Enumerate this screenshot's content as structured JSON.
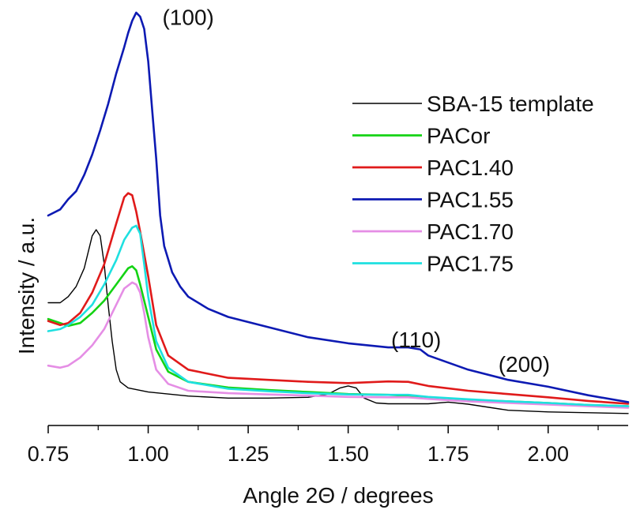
{
  "chart_data": {
    "type": "line",
    "title": "",
    "xlabel": "Angle 2Θ / degrees",
    "ylabel": "Intensity / a.u.",
    "xlim": [
      0.75,
      2.2
    ],
    "ylim": [
      0,
      100
    ],
    "x_ticks": [
      {
        "value": 0.75,
        "label": "0.75"
      },
      {
        "value": 1.0,
        "label": "1.00"
      },
      {
        "value": 1.25,
        "label": "1.25"
      },
      {
        "value": 1.5,
        "label": "1.50"
      },
      {
        "value": 1.75,
        "label": "1.75"
      },
      {
        "value": 2.0,
        "label": "2.00"
      }
    ],
    "y_ticks_shown": false,
    "grid": false,
    "legend_position": "top-right",
    "annotations": [
      {
        "text": "(100)",
        "x": 1.1,
        "y": 97
      },
      {
        "text": "(110)",
        "x": 1.67,
        "y": 17.5
      },
      {
        "text": "(200)",
        "x": 1.94,
        "y": 11.5
      }
    ],
    "series": [
      {
        "name": "SBA-15 template",
        "color": "#000000",
        "x": [
          0.75,
          0.78,
          0.8,
          0.82,
          0.84,
          0.86,
          0.87,
          0.88,
          0.89,
          0.9,
          0.91,
          0.92,
          0.93,
          0.95,
          1.0,
          1.1,
          1.2,
          1.3,
          1.4,
          1.45,
          1.48,
          1.5,
          1.52,
          1.54,
          1.57,
          1.6,
          1.65,
          1.7,
          1.75,
          1.8,
          1.9,
          2.0,
          2.1,
          2.2
        ],
        "y": [
          28.5,
          28.5,
          30,
          32.5,
          37,
          45,
          46.5,
          45,
          38,
          28,
          19,
          12,
          9,
          7.5,
          6.5,
          5.5,
          5,
          5,
          5.2,
          6,
          7.5,
          8,
          7.5,
          5,
          3.8,
          3.6,
          3.6,
          3.6,
          4,
          3.5,
          2,
          1.6,
          1.4,
          1.2
        ]
      },
      {
        "name": "PACor",
        "color": "#14d314",
        "x": [
          0.75,
          0.78,
          0.8,
          0.83,
          0.86,
          0.89,
          0.92,
          0.95,
          0.96,
          0.97,
          0.98,
          1.0,
          1.02,
          1.05,
          1.1,
          1.2,
          1.3,
          1.4,
          1.5,
          1.6,
          1.65,
          1.7,
          1.8,
          1.9,
          2.0,
          2.1,
          2.2
        ],
        "y": [
          24.5,
          23.5,
          22.8,
          23.5,
          26,
          29,
          33,
          37,
          37.5,
          36.5,
          33,
          25,
          17,
          11.5,
          9,
          7.6,
          7,
          6.5,
          6,
          5.8,
          5.6,
          5.2,
          4.5,
          4.2,
          3.8,
          3.3,
          3
        ]
      },
      {
        "name": "PAC1.40",
        "color": "#e01a1a",
        "x": [
          0.75,
          0.78,
          0.8,
          0.83,
          0.86,
          0.89,
          0.92,
          0.94,
          0.95,
          0.96,
          0.97,
          0.98,
          1.0,
          1.02,
          1.05,
          1.1,
          1.2,
          1.3,
          1.4,
          1.5,
          1.6,
          1.65,
          1.7,
          1.8,
          1.9,
          2.0,
          2.1,
          2.2
        ],
        "y": [
          24,
          23,
          23.5,
          26,
          31,
          38,
          48,
          54.5,
          55.5,
          55,
          51,
          46,
          35,
          23,
          15.5,
          12,
          10,
          9.5,
          9,
          8.7,
          9.1,
          9,
          8,
          6.8,
          6,
          5.2,
          4.3,
          3.6
        ]
      },
      {
        "name": "PAC1.55",
        "color": "#0d1ab3",
        "x": [
          0.75,
          0.78,
          0.8,
          0.82,
          0.84,
          0.86,
          0.88,
          0.9,
          0.92,
          0.94,
          0.95,
          0.96,
          0.97,
          0.98,
          0.99,
          1.0,
          1.01,
          1.02,
          1.03,
          1.04,
          1.06,
          1.08,
          1.1,
          1.15,
          1.2,
          1.3,
          1.4,
          1.5,
          1.6,
          1.65,
          1.68,
          1.7,
          1.8,
          1.9,
          2.0,
          2.1,
          2.2
        ],
        "y": [
          50,
          51.5,
          54,
          56,
          60,
          65,
          71,
          77.5,
          85,
          91.5,
          95,
          98,
          100,
          99,
          96,
          88,
          76,
          64,
          50,
          42.5,
          36,
          32.5,
          30,
          27,
          25,
          22.5,
          20,
          18.5,
          17.5,
          17.5,
          17,
          15.5,
          12,
          9.5,
          7.8,
          5.7,
          4
        ]
      },
      {
        "name": "PAC1.70",
        "color": "#e58ee5",
        "x": [
          0.75,
          0.78,
          0.8,
          0.83,
          0.86,
          0.89,
          0.92,
          0.94,
          0.96,
          0.97,
          0.98,
          0.99,
          1.0,
          1.02,
          1.05,
          1.1,
          1.2,
          1.3,
          1.4,
          1.5,
          1.6,
          1.65,
          1.7,
          1.8,
          1.9,
          2.0,
          2.1,
          2.2
        ],
        "y": [
          13,
          12.5,
          13,
          15,
          18,
          22,
          28,
          32,
          33.5,
          33,
          31,
          26,
          20,
          12,
          8.5,
          6.8,
          6.2,
          5.9,
          5.6,
          5.3,
          5.2,
          5.2,
          4.8,
          4.2,
          3.8,
          3.4,
          3,
          2.6
        ]
      },
      {
        "name": "PAC1.75",
        "color": "#1ee0e0",
        "x": [
          0.75,
          0.78,
          0.8,
          0.83,
          0.86,
          0.89,
          0.92,
          0.94,
          0.96,
          0.97,
          0.98,
          0.99,
          1.0,
          1.02,
          1.05,
          1.1,
          1.2,
          1.3,
          1.4,
          1.5,
          1.6,
          1.65,
          1.7,
          1.8,
          1.9,
          2.0,
          2.1,
          2.2
        ],
        "y": [
          21.5,
          22,
          23,
          25,
          28,
          33,
          39,
          44,
          47,
          47.5,
          45.5,
          38,
          30,
          19,
          12.5,
          9,
          7.3,
          6.7,
          6.2,
          5.9,
          5.8,
          5.8,
          5.3,
          4.7,
          4.2,
          3.8,
          3.3,
          3
        ]
      }
    ]
  }
}
